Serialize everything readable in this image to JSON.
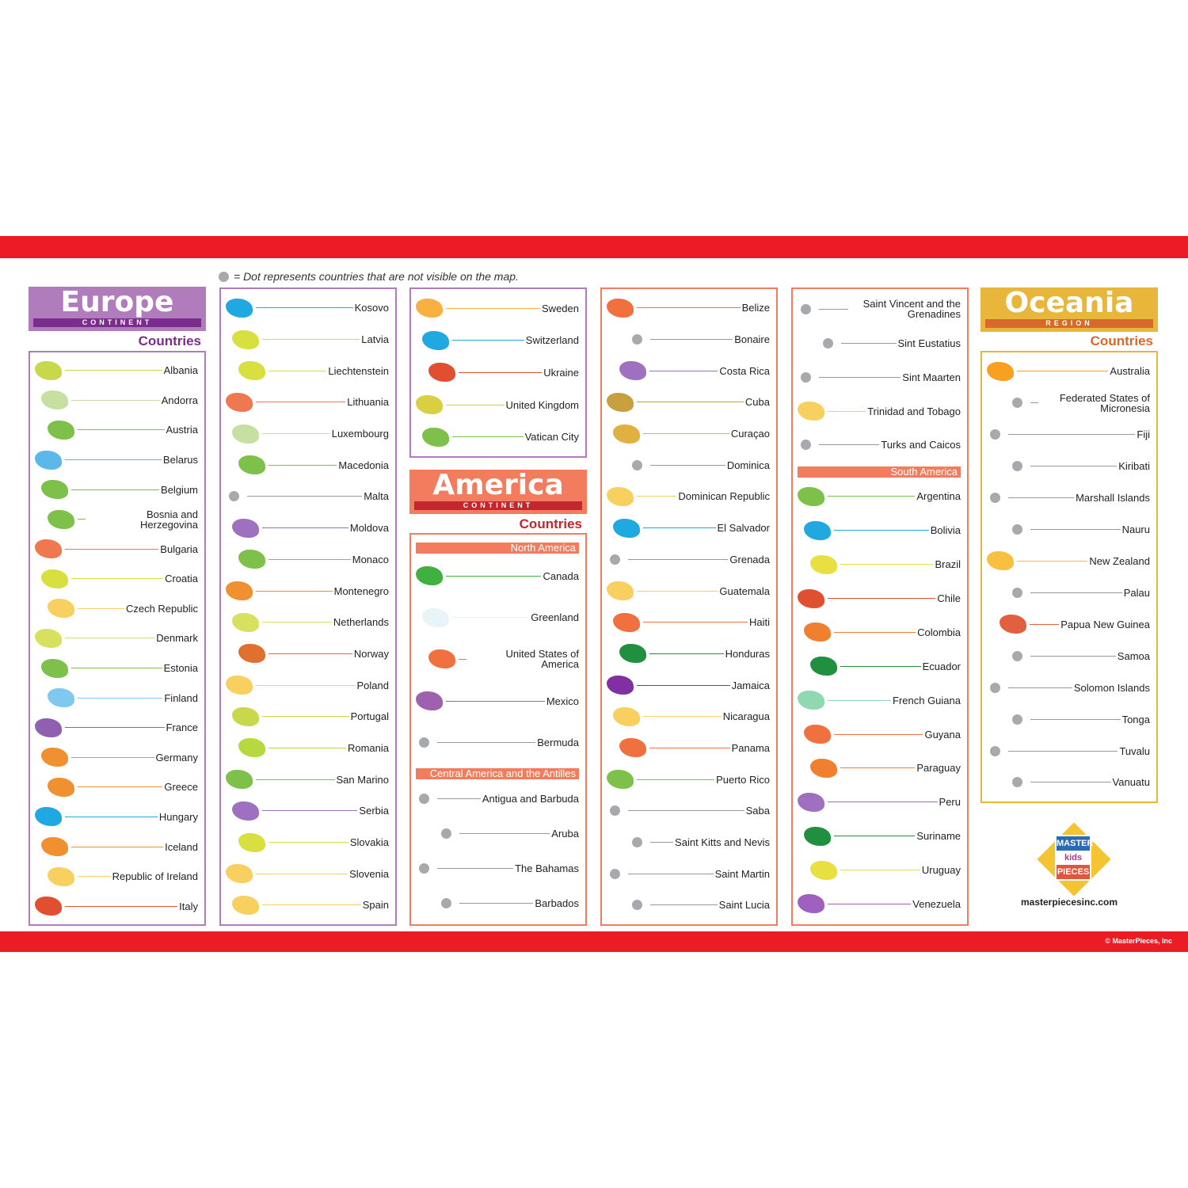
{
  "legend": "= Dot represents countries that are not visible on the map.",
  "europe": {
    "title": "Europe",
    "subtitle": "CONTINENT",
    "countries_label": "Countries",
    "color": "#b07cbc",
    "accent": "#7b2d8e"
  },
  "america": {
    "title": "America",
    "subtitle": "CONTINENT",
    "countries_label": "Countries",
    "color": "#f47c5e",
    "accent": "#c1272d",
    "north": "North America",
    "central": "Central America and the Antilles",
    "south": "South America"
  },
  "oceania": {
    "title": "Oceania",
    "subtitle": "REGION",
    "countries_label": "Countries",
    "color": "#e8b63a",
    "accent": "#d9692b"
  },
  "columns": {
    "eu1": [
      [
        "Albania",
        "#c9d84b"
      ],
      [
        "Andorra",
        "#c5e0a0"
      ],
      [
        "Austria",
        "#7dc04a"
      ],
      [
        "Belarus",
        "#5bb8e8"
      ],
      [
        "Belgium",
        "#7dc04a"
      ],
      [
        "Bosnia and Herzegovina",
        "#7dc04a"
      ],
      [
        "Bulgaria",
        "#f07850"
      ],
      [
        "Croatia",
        "#d8e040"
      ],
      [
        "Czech Republic",
        "#f8d060"
      ],
      [
        "Denmark",
        "#d8e060"
      ],
      [
        "Estonia",
        "#7dc04a"
      ],
      [
        "Finland",
        "#7fc8f0"
      ],
      [
        "France",
        "#9060b0"
      ],
      [
        "Germany",
        "#f09030"
      ],
      [
        "Greece",
        "#f09030"
      ],
      [
        "Hungary",
        "#20a8e0"
      ],
      [
        "Iceland",
        "#f09030"
      ],
      [
        "Republic of Ireland",
        "#f8d060"
      ],
      [
        "Italy",
        "#e05030"
      ]
    ],
    "eu2": [
      [
        "Kosovo",
        "#20a8e0"
      ],
      [
        "Latvia",
        "#d8e040"
      ],
      [
        "Liechtenstein",
        "#d8e040"
      ],
      [
        "Lithuania",
        "#f07850"
      ],
      [
        "Luxembourg",
        "#c5e0a0"
      ],
      [
        "Macedonia",
        "#7dc04a"
      ],
      [
        "Malta",
        null
      ],
      [
        "Moldova",
        "#a070c0"
      ],
      [
        "Monaco",
        "#7dc04a"
      ],
      [
        "Montenegro",
        "#f09030"
      ],
      [
        "Netherlands",
        "#d8e060"
      ],
      [
        "Norway",
        "#e07030"
      ],
      [
        "Poland",
        "#f8d060"
      ],
      [
        "Portugal",
        "#c9d84b"
      ],
      [
        "Romania",
        "#b8d840"
      ],
      [
        "San Marino",
        "#7dc04a"
      ],
      [
        "Serbia",
        "#a070c0"
      ],
      [
        "Slovakia",
        "#d8e040"
      ],
      [
        "Slovenia",
        "#f8d060"
      ],
      [
        "Spain",
        "#f8d060"
      ]
    ],
    "eu3": [
      [
        "Sweden",
        "#f8b040"
      ],
      [
        "Switzerland",
        "#20a8e0"
      ],
      [
        "Ukraine",
        "#e05030"
      ],
      [
        "United Kingdom",
        "#d8d040"
      ],
      [
        "Vatican City",
        "#7dc04a"
      ]
    ],
    "na": [
      [
        "Canada",
        "#40b040"
      ],
      [
        "Greenland",
        "#e8f4f8"
      ],
      [
        "United States of America",
        "#f07040"
      ],
      [
        "Mexico",
        "#a060b0"
      ],
      [
        "Bermuda",
        null
      ]
    ],
    "ca": [
      [
        "Antigua and Barbuda",
        null
      ],
      [
        "Aruba",
        null
      ],
      [
        "The Bahamas",
        null
      ],
      [
        "Barbados",
        null
      ]
    ],
    "am4": [
      [
        "Belize",
        "#f07040"
      ],
      [
        "Bonaire",
        null
      ],
      [
        "Costa Rica",
        "#a070c0"
      ],
      [
        "Cuba",
        "#c8a040"
      ],
      [
        "Curaçao",
        "#e0b040"
      ],
      [
        "Dominica",
        null
      ],
      [
        "Dominican Republic",
        "#f8d060"
      ],
      [
        "El Salvador",
        "#20a8e0"
      ],
      [
        "Grenada",
        null
      ],
      [
        "Guatemala",
        "#f8d060"
      ],
      [
        "Haiti",
        "#f07040"
      ],
      [
        "Honduras",
        "#209040"
      ],
      [
        "Jamaica",
        "#8030a0"
      ],
      [
        "Nicaragua",
        "#f8d060"
      ],
      [
        "Panama",
        "#f07040"
      ],
      [
        "Puerto Rico",
        "#7dc04a"
      ],
      [
        "Saba",
        null
      ],
      [
        "Saint Kitts and Nevis",
        null
      ],
      [
        "Saint Martin",
        null
      ],
      [
        "Saint Lucia",
        null
      ]
    ],
    "am5": [
      [
        "Saint Vincent and the Grenadines",
        null
      ],
      [
        "Sint Eustatius",
        null
      ],
      [
        "Sint Maarten",
        null
      ],
      [
        "Trinidad and Tobago",
        "#f8d060"
      ],
      [
        "Turks and Caicos",
        null
      ]
    ],
    "sa": [
      [
        "Argentina",
        "#7dc04a"
      ],
      [
        "Bolivia",
        "#20a8e0"
      ],
      [
        "Brazil",
        "#e8e040"
      ],
      [
        "Chile",
        "#e05030"
      ],
      [
        "Colombia",
        "#f08030"
      ],
      [
        "Ecuador",
        "#209040"
      ],
      [
        "French Guiana",
        "#90d8b0"
      ],
      [
        "Guyana",
        "#f07040"
      ],
      [
        "Paraguay",
        "#f08030"
      ],
      [
        "Peru",
        "#a070c0"
      ],
      [
        "Suriname",
        "#209040"
      ],
      [
        "Uruguay",
        "#e8e040"
      ],
      [
        "Venezuela",
        "#a060c0"
      ]
    ],
    "oc": [
      [
        "Australia",
        "#f8a020"
      ],
      [
        "Federated States of Micronesia",
        null
      ],
      [
        "Fiji",
        null
      ],
      [
        "Kiribati",
        null
      ],
      [
        "Marshall Islands",
        null
      ],
      [
        "Nauru",
        null
      ],
      [
        "New Zealand",
        "#f8c040"
      ],
      [
        "Palau",
        null
      ],
      [
        "Papua New Guinea",
        "#e06040"
      ],
      [
        "Samoa",
        null
      ],
      [
        "Solomon Islands",
        null
      ],
      [
        "Tonga",
        null
      ],
      [
        "Tuvalu",
        null
      ],
      [
        "Vanuatu",
        null
      ]
    ]
  },
  "logo": {
    "line1": "MASTER",
    "line2": "kids",
    "line3": "PIECES"
  },
  "website": "masterpiecesinc.com",
  "copyright": "© MasterPieces, Inc"
}
